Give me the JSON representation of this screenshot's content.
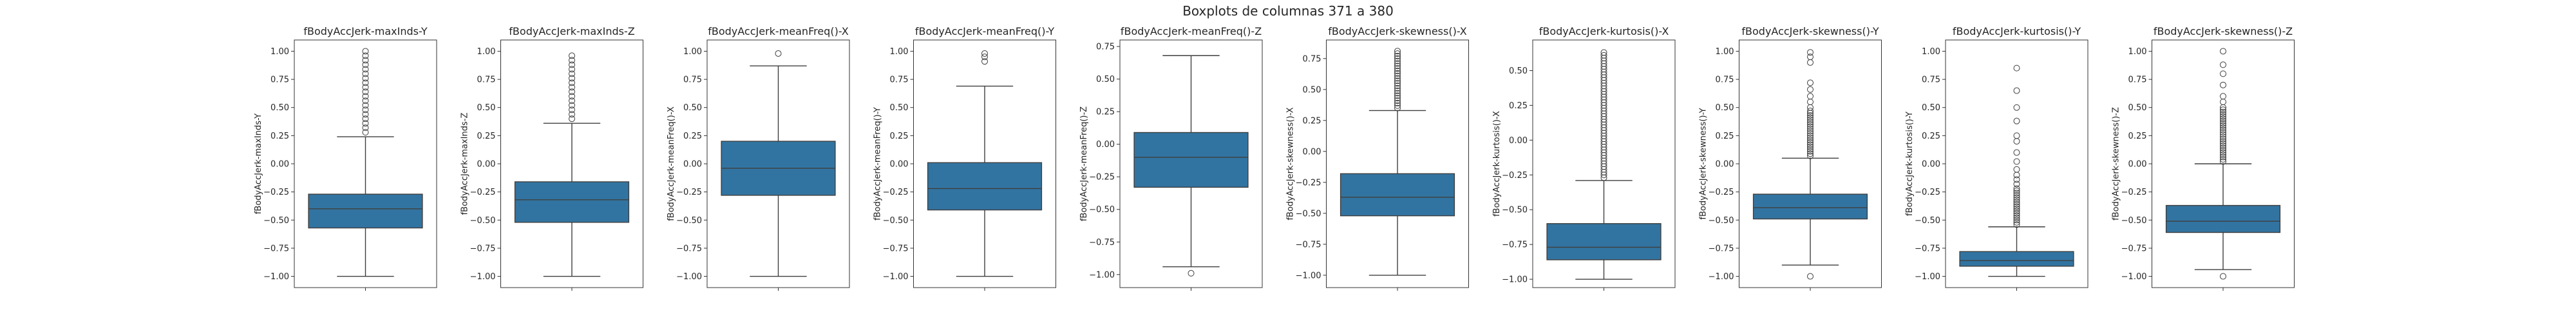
{
  "figure": {
    "suptitle": "Boxplots de columnas 371 a 380",
    "box_color": "#3274a1",
    "line_color": "#3f3f3f"
  },
  "chart_data": [
    {
      "type": "box",
      "title": "fBodyAccJerk-maxInds-Y",
      "ylabel": "fBodyAccJerk-maxInds-Y",
      "ylim": [
        -1.1,
        1.1
      ],
      "yticks": [
        1.0,
        0.75,
        0.5,
        0.25,
        0.0,
        -0.25,
        -0.5,
        -0.75,
        -1.0
      ],
      "ytick_labels": [
        "1.00",
        "0.75",
        "0.50",
        "0.25",
        "0.00",
        "−0.25",
        "−0.50",
        "−0.75",
        "−1.00"
      ],
      "whisker_low": -1.0,
      "q1": -0.57,
      "median": -0.4,
      "q3": -0.27,
      "whisker_high": 0.24,
      "outliers": [
        0.28,
        0.32,
        0.36,
        0.4,
        0.44,
        0.48,
        0.52,
        0.56,
        0.6,
        0.64,
        0.68,
        0.72,
        0.76,
        0.8,
        0.84,
        0.88,
        0.92,
        0.96,
        1.0
      ]
    },
    {
      "type": "box",
      "title": "fBodyAccJerk-maxInds-Z",
      "ylabel": "fBodyAccJerk-maxInds-Z",
      "ylim": [
        -1.1,
        1.1
      ],
      "yticks": [
        1.0,
        0.75,
        0.5,
        0.25,
        0.0,
        -0.25,
        -0.5,
        -0.75,
        -1.0
      ],
      "ytick_labels": [
        "1.00",
        "0.75",
        "0.50",
        "0.25",
        "0.00",
        "−0.25",
        "−0.50",
        "−0.75",
        "−1.00"
      ],
      "whisker_low": -1.0,
      "q1": -0.52,
      "median": -0.32,
      "q3": -0.16,
      "whisker_high": 0.36,
      "outliers": [
        0.4,
        0.44,
        0.48,
        0.52,
        0.56,
        0.6,
        0.64,
        0.68,
        0.72,
        0.76,
        0.8,
        0.84,
        0.88,
        0.92,
        0.96
      ]
    },
    {
      "type": "box",
      "title": "fBodyAccJerk-meanFreq()-X",
      "ylabel": "fBodyAccJerk-meanFreq()-X",
      "ylim": [
        -1.1,
        1.1
      ],
      "yticks": [
        1.0,
        0.75,
        0.5,
        0.25,
        0.0,
        -0.25,
        -0.5,
        -0.75,
        -1.0
      ],
      "ytick_labels": [
        "1.00",
        "0.75",
        "0.50",
        "0.25",
        "0.00",
        "−0.25",
        "−0.50",
        "−0.75",
        "−1.00"
      ],
      "whisker_low": -1.0,
      "q1": -0.28,
      "median": -0.04,
      "q3": 0.2,
      "whisker_high": 0.87,
      "outliers": [
        0.98
      ]
    },
    {
      "type": "box",
      "title": "fBodyAccJerk-meanFreq()-Y",
      "ylabel": "fBodyAccJerk-meanFreq()-Y",
      "ylim": [
        -1.1,
        1.1
      ],
      "yticks": [
        1.0,
        0.75,
        0.5,
        0.25,
        0.0,
        -0.25,
        -0.5,
        -0.75,
        -1.0
      ],
      "ytick_labels": [
        "1.00",
        "0.75",
        "0.50",
        "0.25",
        "0.00",
        "−0.25",
        "−0.50",
        "−0.75",
        "−1.00"
      ],
      "whisker_low": -1.0,
      "q1": -0.41,
      "median": -0.22,
      "q3": 0.01,
      "whisker_high": 0.69,
      "outliers": [
        0.91,
        0.95,
        0.98
      ]
    },
    {
      "type": "box",
      "title": "fBodyAccJerk-meanFreq()-Z",
      "ylabel": "fBodyAccJerk-meanFreq()-Z",
      "ylim": [
        -1.1,
        0.8
      ],
      "yticks": [
        0.75,
        0.5,
        0.25,
        0.0,
        -0.25,
        -0.5,
        -0.75,
        -1.0
      ],
      "ytick_labels": [
        "0.75",
        "0.50",
        "0.25",
        "0.00",
        "−0.25",
        "−0.50",
        "−0.75",
        "−1.00"
      ],
      "whisker_low": -0.94,
      "q1": -0.33,
      "median": -0.1,
      "q3": 0.09,
      "whisker_high": 0.68,
      "outliers": [
        -0.99
      ]
    },
    {
      "type": "box",
      "title": "fBodyAccJerk-skewness()-X",
      "ylabel": "fBodyAccJerk-skewness()-X",
      "ylim": [
        -1.1,
        0.9
      ],
      "yticks": [
        0.75,
        0.5,
        0.25,
        0.0,
        -0.25,
        -0.5,
        -0.75,
        -1.0
      ],
      "ytick_labels": [
        "0.75",
        "0.50",
        "0.25",
        "0.00",
        "−0.25",
        "−0.50",
        "−0.75",
        "−1.00"
      ],
      "whisker_low": -1.0,
      "q1": -0.52,
      "median": -0.37,
      "q3": -0.18,
      "whisker_high": 0.33,
      "outliers": [
        0.35,
        0.37,
        0.39,
        0.41,
        0.43,
        0.45,
        0.47,
        0.49,
        0.51,
        0.53,
        0.55,
        0.57,
        0.59,
        0.61,
        0.63,
        0.65,
        0.67,
        0.69,
        0.71,
        0.73,
        0.75,
        0.77,
        0.79,
        0.81
      ]
    },
    {
      "type": "box",
      "title": "fBodyAccJerk-kurtosis()-X",
      "ylabel": "fBodyAccJerk-kurtosis()-X",
      "ylim": [
        -1.06,
        0.72
      ],
      "yticks": [
        0.5,
        0.25,
        0.0,
        -0.25,
        -0.5,
        -0.75,
        -1.0
      ],
      "ytick_labels": [
        "0.50",
        "0.25",
        "0.00",
        "−0.25",
        "−0.50",
        "−0.75",
        "−1.00"
      ],
      "whisker_low": -1.0,
      "q1": -0.86,
      "median": -0.77,
      "q3": -0.6,
      "whisker_high": -0.29,
      "outliers": [
        -0.27,
        -0.25,
        -0.23,
        -0.21,
        -0.19,
        -0.17,
        -0.15,
        -0.13,
        -0.11,
        -0.09,
        -0.07,
        -0.05,
        -0.03,
        -0.01,
        0.01,
        0.03,
        0.05,
        0.07,
        0.09,
        0.11,
        0.13,
        0.15,
        0.17,
        0.19,
        0.21,
        0.23,
        0.25,
        0.27,
        0.29,
        0.31,
        0.33,
        0.35,
        0.37,
        0.39,
        0.41,
        0.43,
        0.45,
        0.47,
        0.49,
        0.51,
        0.53,
        0.55,
        0.57,
        0.59,
        0.61,
        0.63
      ]
    },
    {
      "type": "box",
      "title": "fBodyAccJerk-skewness()-Y",
      "ylabel": "fBodyAccJerk-skewness()-Y",
      "ylim": [
        -1.1,
        1.1
      ],
      "yticks": [
        1.0,
        0.75,
        0.5,
        0.25,
        0.0,
        -0.25,
        -0.5,
        -0.75,
        -1.0
      ],
      "ytick_labels": [
        "1.00",
        "0.75",
        "0.50",
        "0.25",
        "0.00",
        "−0.25",
        "−0.50",
        "−0.75",
        "−1.00"
      ],
      "whisker_low": -0.9,
      "q1": -0.49,
      "median": -0.39,
      "q3": -0.27,
      "whisker_high": 0.05,
      "outliers": [
        -1.0,
        0.07,
        0.09,
        0.11,
        0.13,
        0.15,
        0.17,
        0.19,
        0.21,
        0.23,
        0.25,
        0.27,
        0.29,
        0.31,
        0.33,
        0.35,
        0.37,
        0.39,
        0.41,
        0.43,
        0.45,
        0.47,
        0.5,
        0.55,
        0.6,
        0.66,
        0.72,
        0.9,
        0.95,
        0.99
      ]
    },
    {
      "type": "box",
      "title": "fBodyAccJerk-kurtosis()-Y",
      "ylabel": "fBodyAccJerk-kurtosis()-Y",
      "ylim": [
        -1.1,
        1.1
      ],
      "yticks": [
        1.0,
        0.75,
        0.5,
        0.25,
        0.0,
        -0.25,
        -0.5,
        -0.75,
        -1.0
      ],
      "ytick_labels": [
        "1.00",
        "0.75",
        "0.50",
        "0.25",
        "0.00",
        "−0.25",
        "−0.50",
        "−0.75",
        "−1.00"
      ],
      "whisker_low": -1.0,
      "q1": -0.91,
      "median": -0.86,
      "q3": -0.78,
      "whisker_high": -0.56,
      "outliers": [
        -0.54,
        -0.52,
        -0.5,
        -0.48,
        -0.46,
        -0.44,
        -0.42,
        -0.4,
        -0.38,
        -0.36,
        -0.34,
        -0.32,
        -0.3,
        -0.28,
        -0.26,
        -0.24,
        -0.22,
        -0.18,
        -0.14,
        -0.1,
        -0.05,
        0.02,
        0.1,
        0.2,
        0.25,
        0.38,
        0.5,
        0.65,
        0.85
      ]
    },
    {
      "type": "box",
      "title": "fBodyAccJerk-skewness()-Z",
      "ylabel": "fBodyAccJerk-skewness()-Z",
      "ylim": [
        -1.1,
        1.1
      ],
      "yticks": [
        1.0,
        0.75,
        0.5,
        0.25,
        0.0,
        -0.25,
        -0.5,
        -0.75,
        -1.0
      ],
      "ytick_labels": [
        "1.00",
        "0.75",
        "0.50",
        "0.25",
        "0.00",
        "−0.25",
        "−0.50",
        "−0.75",
        "−1.00"
      ],
      "whisker_low": -0.94,
      "q1": -0.61,
      "median": -0.51,
      "q3": -0.37,
      "whisker_high": 0.0,
      "outliers": [
        -1.0,
        0.02,
        0.04,
        0.06,
        0.08,
        0.1,
        0.12,
        0.14,
        0.16,
        0.18,
        0.2,
        0.22,
        0.24,
        0.26,
        0.28,
        0.3,
        0.32,
        0.34,
        0.36,
        0.38,
        0.4,
        0.42,
        0.44,
        0.46,
        0.48,
        0.5,
        0.55,
        0.6,
        0.7,
        0.8,
        0.88,
        1.0
      ]
    }
  ]
}
